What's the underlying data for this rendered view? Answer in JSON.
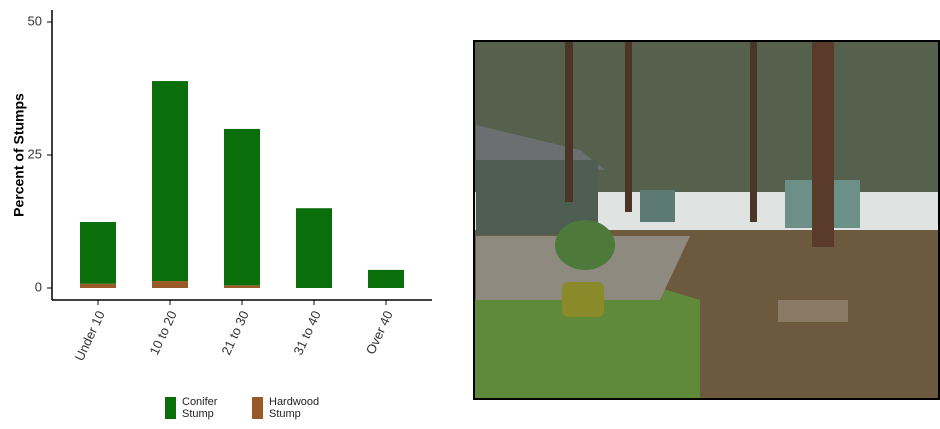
{
  "chart_data": {
    "type": "bar",
    "stacked": true,
    "y_label": "Percent of Stumps",
    "categories": [
      "Under 10",
      "10 to 20",
      "21 to 30",
      "31 to 40",
      "Over 40"
    ],
    "series": [
      {
        "name": "Conifer Stump",
        "color": "#0a6e0a",
        "values": [
          11.6,
          37.6,
          29.4,
          15.0,
          3.4
        ]
      },
      {
        "name": "Hardwood Stump",
        "color": "#9a5a26",
        "values": [
          0.8,
          1.3,
          0.5,
          0,
          0
        ]
      }
    ],
    "ylim": [
      0,
      50
    ],
    "yticks": [
      0,
      25,
      50
    ],
    "grid": false
  }
}
